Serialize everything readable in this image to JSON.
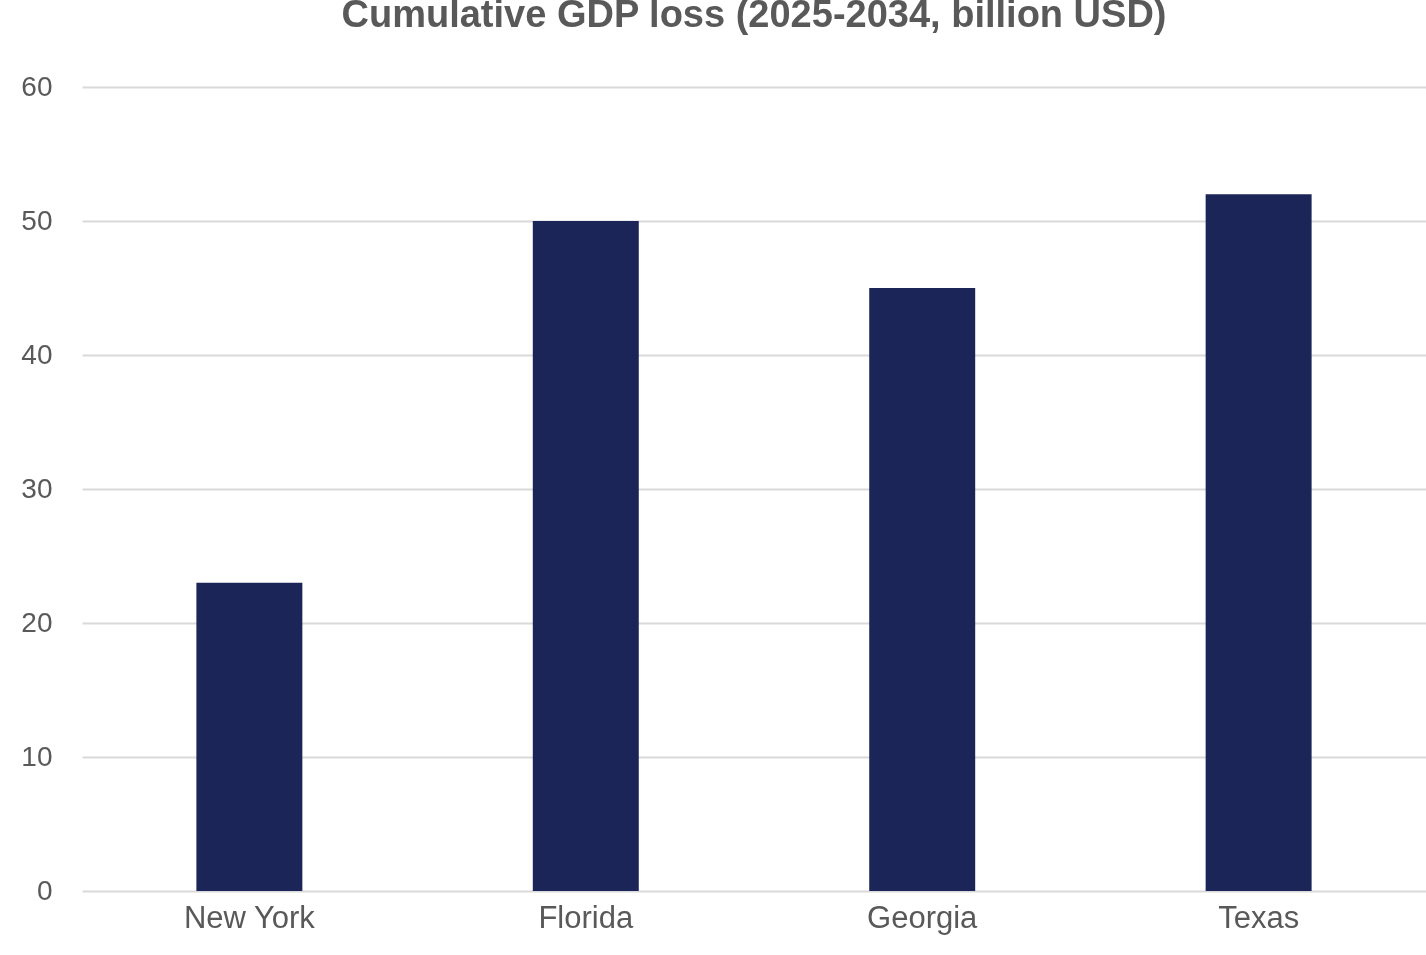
{
  "chart_data": {
    "type": "bar",
    "title": "Cumulative GDP loss (2025-2034, billion USD)",
    "categories": [
      "New York",
      "Florida",
      "Georgia",
      "Texas"
    ],
    "values": [
      23,
      50,
      45,
      52
    ],
    "color": "#1c2557",
    "ylim": [
      0,
      60
    ],
    "yticks": [
      0,
      10,
      20,
      30,
      40,
      50,
      60
    ],
    "grid": "y"
  }
}
